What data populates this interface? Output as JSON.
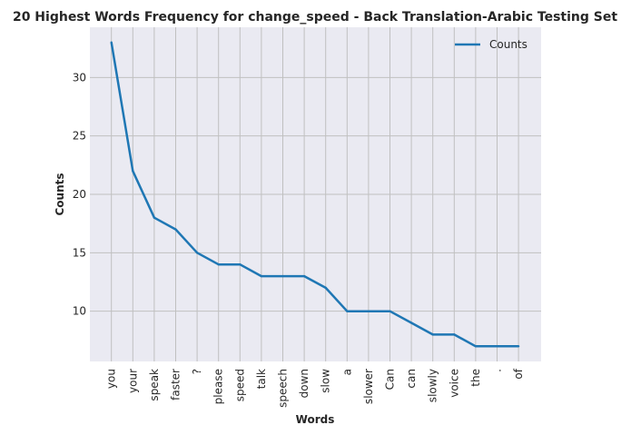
{
  "chart_data": {
    "type": "line",
    "title": "20 Highest Words Frequency for change_speed - Back Translation-Arabic Testing Set",
    "xlabel": "Words",
    "ylabel": "Counts",
    "categories": [
      "you",
      "your",
      "speak",
      "faster",
      "?",
      "please",
      "speed",
      "talk",
      "speech",
      "down",
      "slow",
      "a",
      "slower",
      "Can",
      "can",
      "slowly",
      "voice",
      "the",
      ".",
      "of"
    ],
    "series": [
      {
        "name": "Counts",
        "values": [
          33,
          22,
          18,
          17,
          15,
          14,
          14,
          13,
          13,
          13,
          12,
          10,
          10,
          10,
          9,
          8,
          8,
          7,
          7,
          7
        ],
        "color": "#1f77b4"
      }
    ],
    "ylim": [
      5.7,
      34.3
    ],
    "yticks": [
      10,
      15,
      20,
      25,
      30
    ],
    "grid": true,
    "legend_position": "top-right",
    "background_color": "#eaeaf2",
    "grid_color": "#c0c0c0"
  }
}
